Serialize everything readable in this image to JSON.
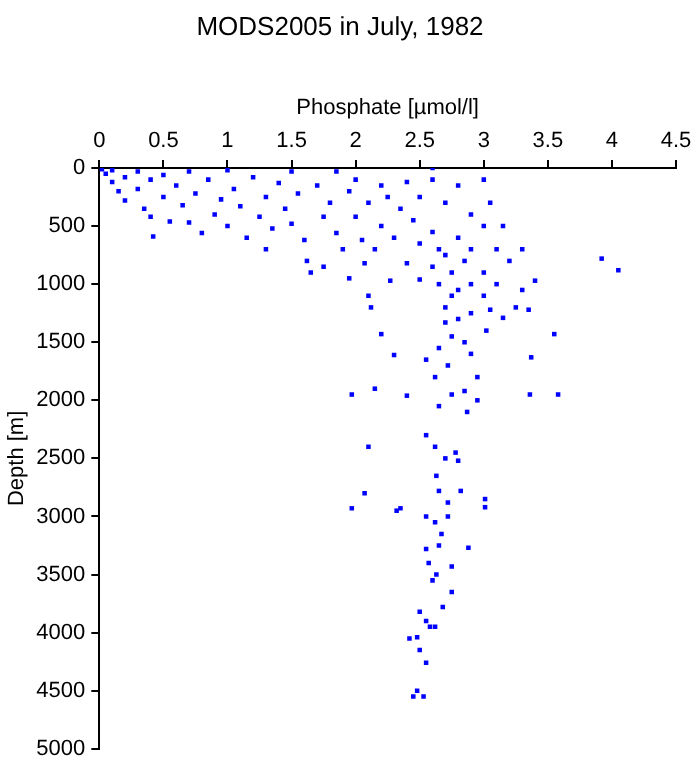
{
  "chart_data": {
    "type": "scatter",
    "title": "MODS2005 in July, 1982",
    "xlabel": "Phosphate [µmol/l]",
    "ylabel": "Depth [m]",
    "xlim": [
      0,
      4.5
    ],
    "xticks": [
      0,
      0.5,
      1,
      1.5,
      2,
      2.5,
      3,
      3.5,
      4,
      4.5
    ],
    "ylim": [
      5000,
      0
    ],
    "yticks": [
      0,
      500,
      1000,
      1500,
      2000,
      2500,
      3000,
      3500,
      4000,
      4500,
      5000
    ],
    "grid": false,
    "legend": false,
    "marker": "square",
    "color": "#0000ff",
    "x": [
      0.02,
      0.05,
      0.1,
      0.1,
      0.15,
      0.2,
      0.2,
      0.3,
      0.3,
      0.35,
      0.4,
      0.4,
      0.42,
      0.5,
      0.5,
      0.55,
      0.6,
      0.65,
      0.7,
      0.7,
      0.75,
      0.8,
      0.85,
      0.9,
      0.95,
      1.0,
      1.0,
      1.05,
      1.1,
      1.15,
      1.2,
      1.25,
      1.3,
      1.3,
      1.35,
      1.4,
      1.45,
      1.5,
      1.5,
      1.55,
      1.6,
      1.62,
      1.65,
      1.7,
      1.75,
      1.75,
      1.8,
      1.85,
      1.85,
      1.9,
      1.95,
      1.95,
      1.97,
      2.0,
      2.0,
      2.05,
      2.07,
      2.1,
      2.1,
      2.12,
      2.15,
      2.1,
      2.15,
      2.2,
      2.2,
      2.2,
      2.25,
      2.27,
      2.3,
      2.3,
      2.35,
      2.35,
      2.4,
      2.4,
      2.4,
      2.45,
      2.5,
      2.5,
      2.5,
      2.55,
      2.55,
      2.6,
      2.6,
      2.6,
      2.6,
      2.62,
      2.62,
      2.63,
      2.65,
      2.65,
      2.65,
      2.65,
      2.65,
      2.65,
      2.7,
      2.7,
      2.7,
      2.7,
      2.7,
      2.72,
      2.72,
      2.75,
      2.75,
      2.75,
      2.75,
      2.78,
      2.8,
      2.8,
      2.8,
      2.8,
      2.8,
      2.82,
      2.85,
      2.85,
      2.85,
      2.87,
      2.9,
      2.9,
      2.9,
      2.9,
      2.9,
      2.95,
      2.95,
      3.0,
      3.0,
      3.0,
      3.0,
      3.02,
      3.05,
      3.05,
      3.1,
      3.1,
      3.15,
      3.15,
      3.2,
      3.25,
      3.3,
      3.3,
      3.35,
      3.36,
      3.37,
      3.4,
      3.55,
      3.58,
      3.92,
      4.05,
      1.97,
      2.07,
      2.32,
      2.55,
      2.62,
      2.55,
      2.57,
      2.6,
      2.63,
      2.67,
      2.68,
      2.75,
      2.75,
      2.5,
      2.55,
      2.58,
      2.62,
      2.42,
      2.48,
      2.5,
      2.55,
      2.45,
      2.48,
      2.53,
      2.88,
      3.01,
      3.01,
      2.72
    ],
    "values": [
      10,
      50,
      20,
      120,
      200,
      80,
      280,
      30,
      180,
      350,
      100,
      420,
      590,
      60,
      250,
      460,
      150,
      320,
      30,
      470,
      220,
      560,
      100,
      400,
      270,
      20,
      500,
      180,
      330,
      600,
      80,
      420,
      250,
      700,
      520,
      130,
      350,
      30,
      480,
      220,
      620,
      800,
      900,
      150,
      420,
      850,
      300,
      30,
      560,
      700,
      200,
      950,
      1950,
      420,
      100,
      620,
      820,
      300,
      1100,
      1200,
      1900,
      2400,
      700,
      500,
      150,
      1430,
      250,
      970,
      1610,
      600,
      350,
      2930,
      820,
      120,
      1960,
      450,
      650,
      250,
      960,
      1650,
      2300,
      100,
      550,
      850,
      0,
      1800,
      2400,
      2650,
      700,
      1000,
      1550,
      2050,
      2780,
      3250,
      300,
      750,
      1200,
      1330,
      2500,
      1700,
      3000,
      900,
      1100,
      1450,
      1950,
      2450,
      150,
      600,
      1050,
      1300,
      2520,
      2780,
      800,
      1500,
      1920,
      2100,
      400,
      700,
      1000,
      1250,
      1600,
      1800,
      2000,
      100,
      500,
      900,
      1100,
      1400,
      300,
      1220,
      700,
      1000,
      500,
      1290,
      800,
      1200,
      1050,
      700,
      1220,
      1950,
      1630,
      970,
      1430,
      1950,
      780,
      880,
      2930,
      2800,
      2950,
      3000,
      3050,
      3280,
      3400,
      3550,
      3500,
      3150,
      3780,
      3430,
      3650,
      3820,
      3900,
      3950,
      3950,
      4050,
      4040,
      4150,
      4260,
      4550,
      4500,
      4550,
      3270,
      2850,
      2920,
      2880
    ]
  }
}
